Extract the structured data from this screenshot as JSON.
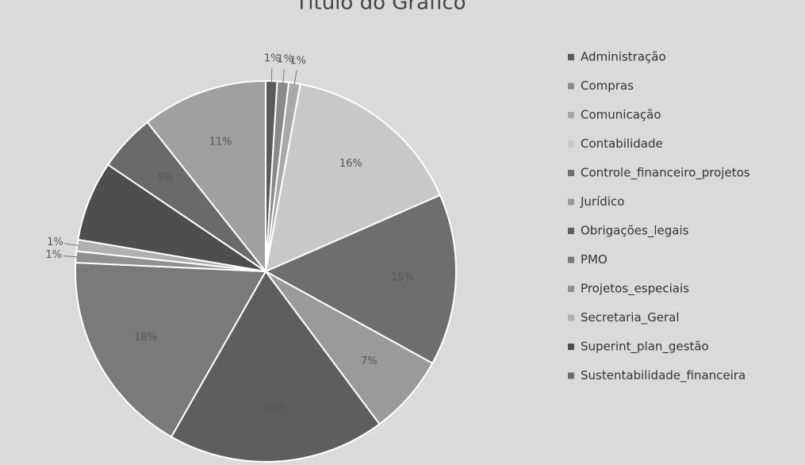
{
  "chart_data": {
    "type": "pie",
    "title": "Título do Gráfico",
    "categories": [
      "Administração",
      "Compras",
      "Comunicação",
      "Contabilidade",
      "Controle_financeiro_projetos",
      "Jurídico",
      "Obrigações_legais",
      "PMO",
      "Projetos_especiais",
      "Secretaria_Geral",
      "Superint_plan_gestão",
      "Sustentabilidade_financeira",
      null
    ],
    "values": [
      1,
      1,
      1,
      16,
      15,
      7,
      19,
      18,
      1,
      1,
      7,
      5,
      11
    ],
    "value_labels": [
      "1%",
      "1%",
      "1%",
      "16%",
      "15%",
      "7%",
      "19%",
      "18%",
      "1%",
      "1%",
      null,
      "5%",
      "11%"
    ],
    "colors": [
      "#5a5a5a",
      "#8a8a8a",
      "#a8a8a8",
      "#c8c8c8",
      "#6e6e6e",
      "#9a9a9a",
      "#5e5e5e",
      "#7a7a7a",
      "#909090",
      "#b0b0b0",
      "#4e4e4e",
      "#6a6a6a",
      "#a0a0a0"
    ],
    "legend": "right"
  }
}
